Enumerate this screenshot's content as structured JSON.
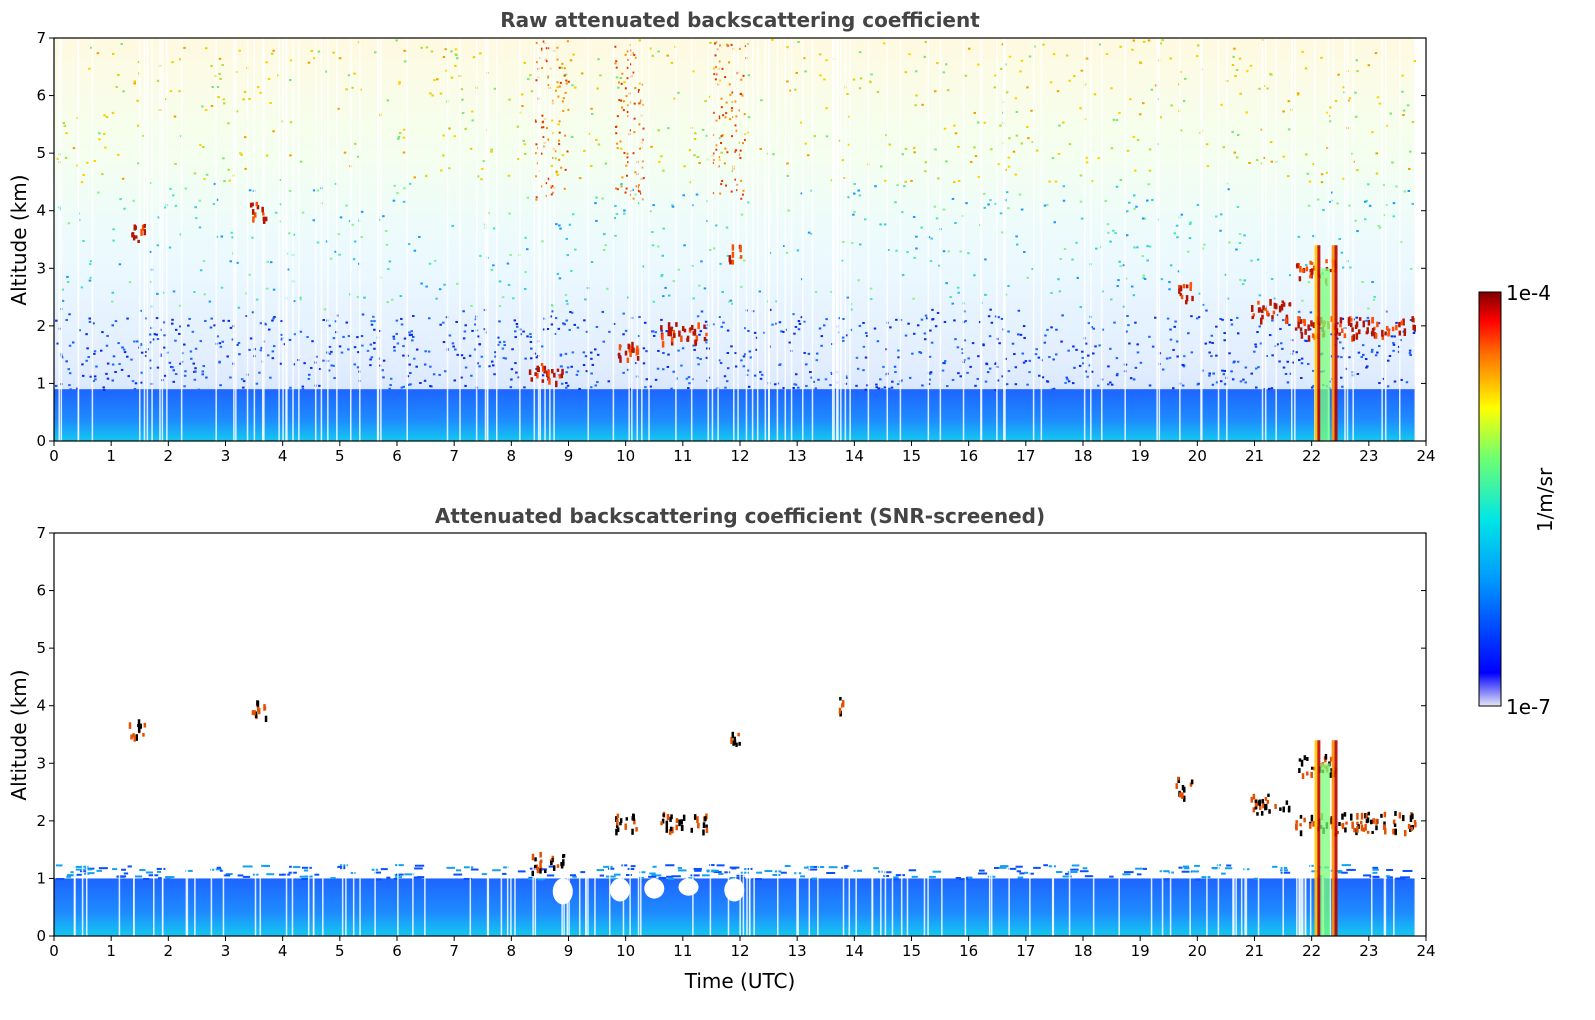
{
  "chart_data": [
    {
      "type": "heatmap",
      "title": "Raw attenuated backscattering coefficient",
      "xlabel": "",
      "ylabel": "Altitude (km)",
      "xlim": [
        0,
        24
      ],
      "ylim": [
        0,
        7
      ],
      "x_ticks": [
        0,
        1,
        2,
        3,
        4,
        5,
        6,
        7,
        8,
        9,
        10,
        11,
        12,
        13,
        14,
        15,
        16,
        17,
        18,
        19,
        20,
        21,
        22,
        23,
        24
      ],
      "y_ticks": [
        0,
        1,
        2,
        3,
        4,
        5,
        6,
        7
      ],
      "data_end_time": 23.8,
      "boundary_layer_top_km": 0.9,
      "cloud_layers": [
        {
          "time_start": 1.3,
          "time_end": 1.6,
          "alt_km": 3.65
        },
        {
          "time_start": 3.4,
          "time_end": 3.7,
          "alt_km": 4.0
        },
        {
          "time_start": 8.3,
          "time_end": 8.9,
          "alt_km": 1.2
        },
        {
          "time_start": 9.8,
          "time_end": 10.2,
          "alt_km": 1.6
        },
        {
          "time_start": 10.6,
          "time_end": 11.4,
          "alt_km": 1.9
        },
        {
          "time_start": 11.8,
          "time_end": 12.0,
          "alt_km": 3.3
        },
        {
          "time_start": 19.6,
          "time_end": 19.9,
          "alt_km": 2.6
        },
        {
          "time_start": 20.9,
          "time_end": 21.6,
          "alt_km": 2.3
        },
        {
          "time_start": 21.7,
          "time_end": 22.4,
          "alt_km": 3.0
        },
        {
          "time_start": 21.7,
          "time_end": 23.8,
          "alt_km": 2.0
        }
      ],
      "grid": false
    },
    {
      "type": "heatmap",
      "title": "Attenuated backscattering coefficient (SNR-screened)",
      "xlabel": "Time (UTC)",
      "ylabel": "Altitude (km)",
      "xlim": [
        0,
        24
      ],
      "ylim": [
        0,
        7
      ],
      "x_ticks": [
        0,
        1,
        2,
        3,
        4,
        5,
        6,
        7,
        8,
        9,
        10,
        11,
        12,
        13,
        14,
        15,
        16,
        17,
        18,
        19,
        20,
        21,
        22,
        23,
        24
      ],
      "y_ticks": [
        0,
        1,
        2,
        3,
        4,
        5,
        6,
        7
      ],
      "data_end_time": 23.8,
      "boundary_layer_top_km": 1.0,
      "cloud_layers": [
        {
          "time_start": 1.3,
          "time_end": 1.6,
          "alt_km": 3.65
        },
        {
          "time_start": 3.4,
          "time_end": 3.7,
          "alt_km": 4.0
        },
        {
          "time_start": 8.3,
          "time_end": 8.9,
          "alt_km": 1.3
        },
        {
          "time_start": 9.8,
          "time_end": 10.2,
          "alt_km": 2.0
        },
        {
          "time_start": 10.6,
          "time_end": 11.4,
          "alt_km": 2.0
        },
        {
          "time_start": 11.8,
          "time_end": 12.0,
          "alt_km": 3.4
        },
        {
          "time_start": 13.7,
          "time_end": 13.8,
          "alt_km": 4.0
        },
        {
          "time_start": 19.6,
          "time_end": 19.9,
          "alt_km": 2.6
        },
        {
          "time_start": 20.9,
          "time_end": 21.6,
          "alt_km": 2.3
        },
        {
          "time_start": 21.7,
          "time_end": 22.4,
          "alt_km": 3.0
        },
        {
          "time_start": 21.7,
          "time_end": 23.8,
          "alt_km": 2.0
        }
      ],
      "grid": false
    }
  ],
  "colorbar": {
    "label": "1/m/sr",
    "max_label": "1e-4",
    "min_label": "1e-7",
    "colormap": "jet",
    "stops": [
      "#e0e0f4",
      "#0000ff",
      "#00a0ff",
      "#00e0e0",
      "#60ff60",
      "#ffff00",
      "#ff8000",
      "#ff0000",
      "#800000"
    ]
  }
}
